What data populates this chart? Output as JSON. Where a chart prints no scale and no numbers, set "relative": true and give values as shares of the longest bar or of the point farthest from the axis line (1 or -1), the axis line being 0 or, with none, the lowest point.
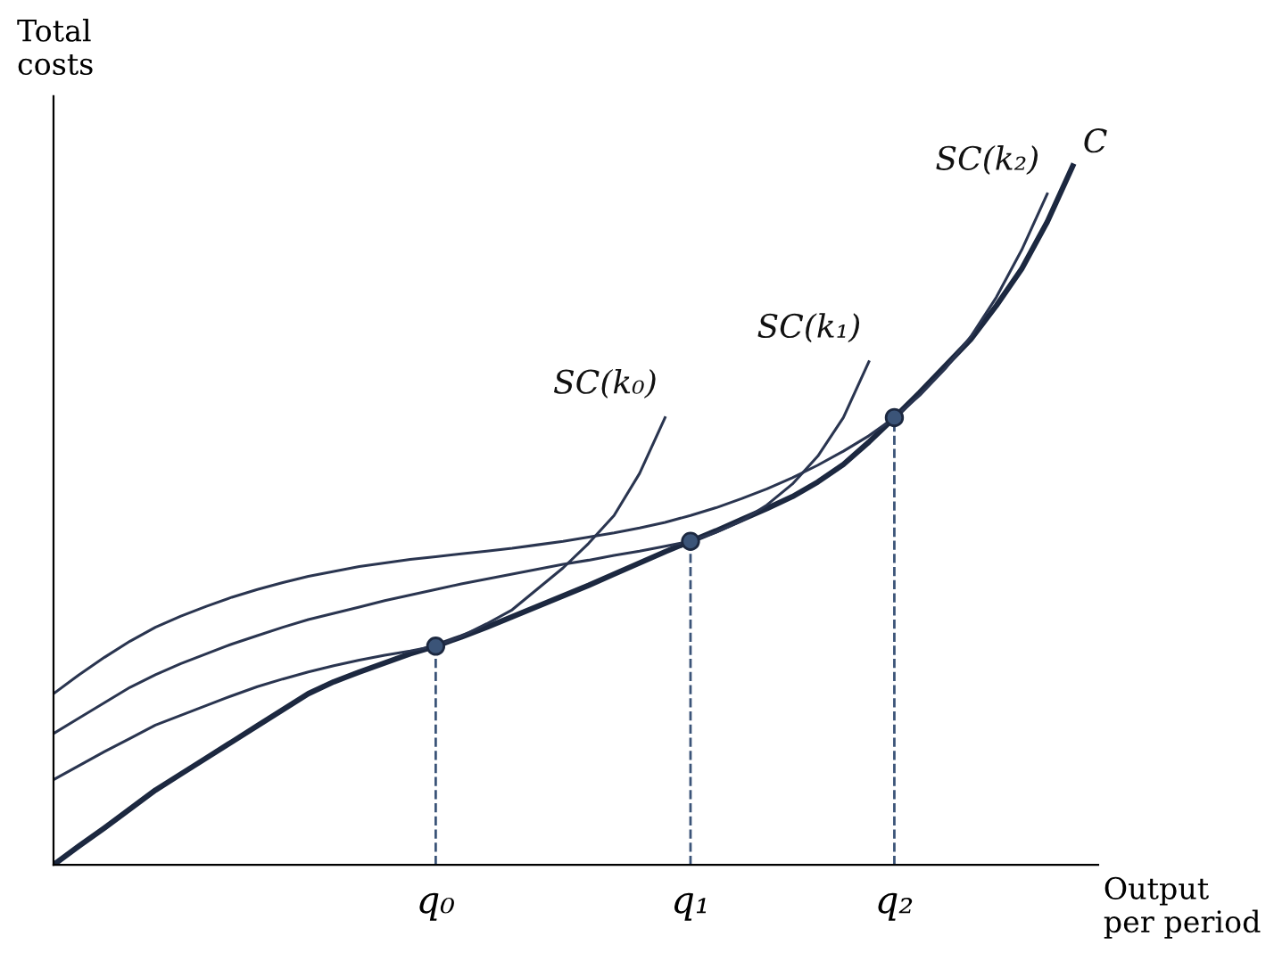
{
  "chart_data": {
    "type": "line",
    "relative": true,
    "ylabel": "Total costs",
    "xlabel": "Output\nper period",
    "categories": [
      null,
      null,
      null,
      null,
      null,
      null,
      null,
      null,
      null,
      null,
      null,
      null,
      null,
      null,
      null,
      "q₀",
      null,
      null,
      null,
      null,
      null,
      null,
      null,
      null,
      null,
      "q₁",
      null,
      null,
      null,
      null,
      null,
      null,
      null,
      "q₂",
      null,
      null,
      null,
      null,
      null,
      null,
      null
    ],
    "grid": false,
    "legend": false,
    "series": [
      {
        "name": "C",
        "color": "#1c2840",
        "values": [
          0,
          0.027,
          0.053,
          0.08,
          0.107,
          0.13,
          0.153,
          0.176,
          0.199,
          0.222,
          0.245,
          0.262,
          0.276,
          0.289,
          0.302,
          0.313,
          0.326,
          0.34,
          0.355,
          0.37,
          0.385,
          0.4,
          0.416,
          0.432,
          0.448,
          0.463,
          0.478,
          0.494,
          0.51,
          0.527,
          0.548,
          0.573,
          0.605,
          0.64,
          0.676,
          0.714,
          0.752,
          0.8,
          0.853,
          0.92,
          1.0
        ]
      },
      {
        "name": "SC(k₀)",
        "color": "#2a3550",
        "values": [
          0.122,
          0.142,
          0.162,
          0.181,
          0.2,
          0.214,
          0.228,
          0.242,
          0.255,
          0.266,
          0.276,
          0.285,
          0.293,
          0.3,
          0.306,
          0.313,
          0.327,
          0.345,
          0.365,
          0.395,
          0.425,
          0.46,
          0.5,
          0.56,
          0.64,
          null,
          null,
          null,
          null,
          null,
          null,
          null,
          null,
          null,
          null,
          null,
          null,
          null,
          null,
          null,
          null
        ]
      },
      {
        "name": "SC(k₁)",
        "color": "#2a3550",
        "values": [
          0.188,
          0.21,
          0.232,
          0.254,
          0.272,
          0.288,
          0.302,
          0.316,
          0.328,
          0.34,
          0.351,
          0.36,
          0.369,
          0.378,
          0.386,
          0.394,
          0.402,
          0.409,
          0.416,
          0.423,
          0.43,
          0.436,
          0.443,
          0.449,
          0.456,
          0.463,
          0.476,
          0.492,
          0.515,
          0.545,
          0.585,
          0.64,
          0.72,
          null,
          null,
          null,
          null,
          null,
          null,
          null,
          null
        ]
      },
      {
        "name": "SC(k₂)",
        "color": "#2a3550",
        "values": [
          0.245,
          0.272,
          0.297,
          0.32,
          0.34,
          0.356,
          0.37,
          0.383,
          0.394,
          0.404,
          0.413,
          0.42,
          0.427,
          0.432,
          0.437,
          0.441,
          0.445,
          0.449,
          0.453,
          0.458,
          0.463,
          0.469,
          0.475,
          0.482,
          0.49,
          0.5,
          0.511,
          0.524,
          0.538,
          0.554,
          0.572,
          0.592,
          0.614,
          0.64,
          0.672,
          0.71,
          0.756,
          0.812,
          0.88,
          0.96,
          null
        ]
      },
      {
        "type": "lollipop",
        "line_style": "dashed",
        "marker": "circle",
        "color": "#3b5478",
        "values": [
          null,
          null,
          null,
          null,
          null,
          null,
          null,
          null,
          null,
          null,
          null,
          null,
          null,
          null,
          null,
          0.313,
          null,
          null,
          null,
          null,
          null,
          null,
          null,
          null,
          null,
          0.463,
          null,
          null,
          null,
          null,
          null,
          null,
          null,
          0.64,
          null,
          null,
          null,
          null,
          null,
          null,
          null
        ]
      }
    ]
  }
}
